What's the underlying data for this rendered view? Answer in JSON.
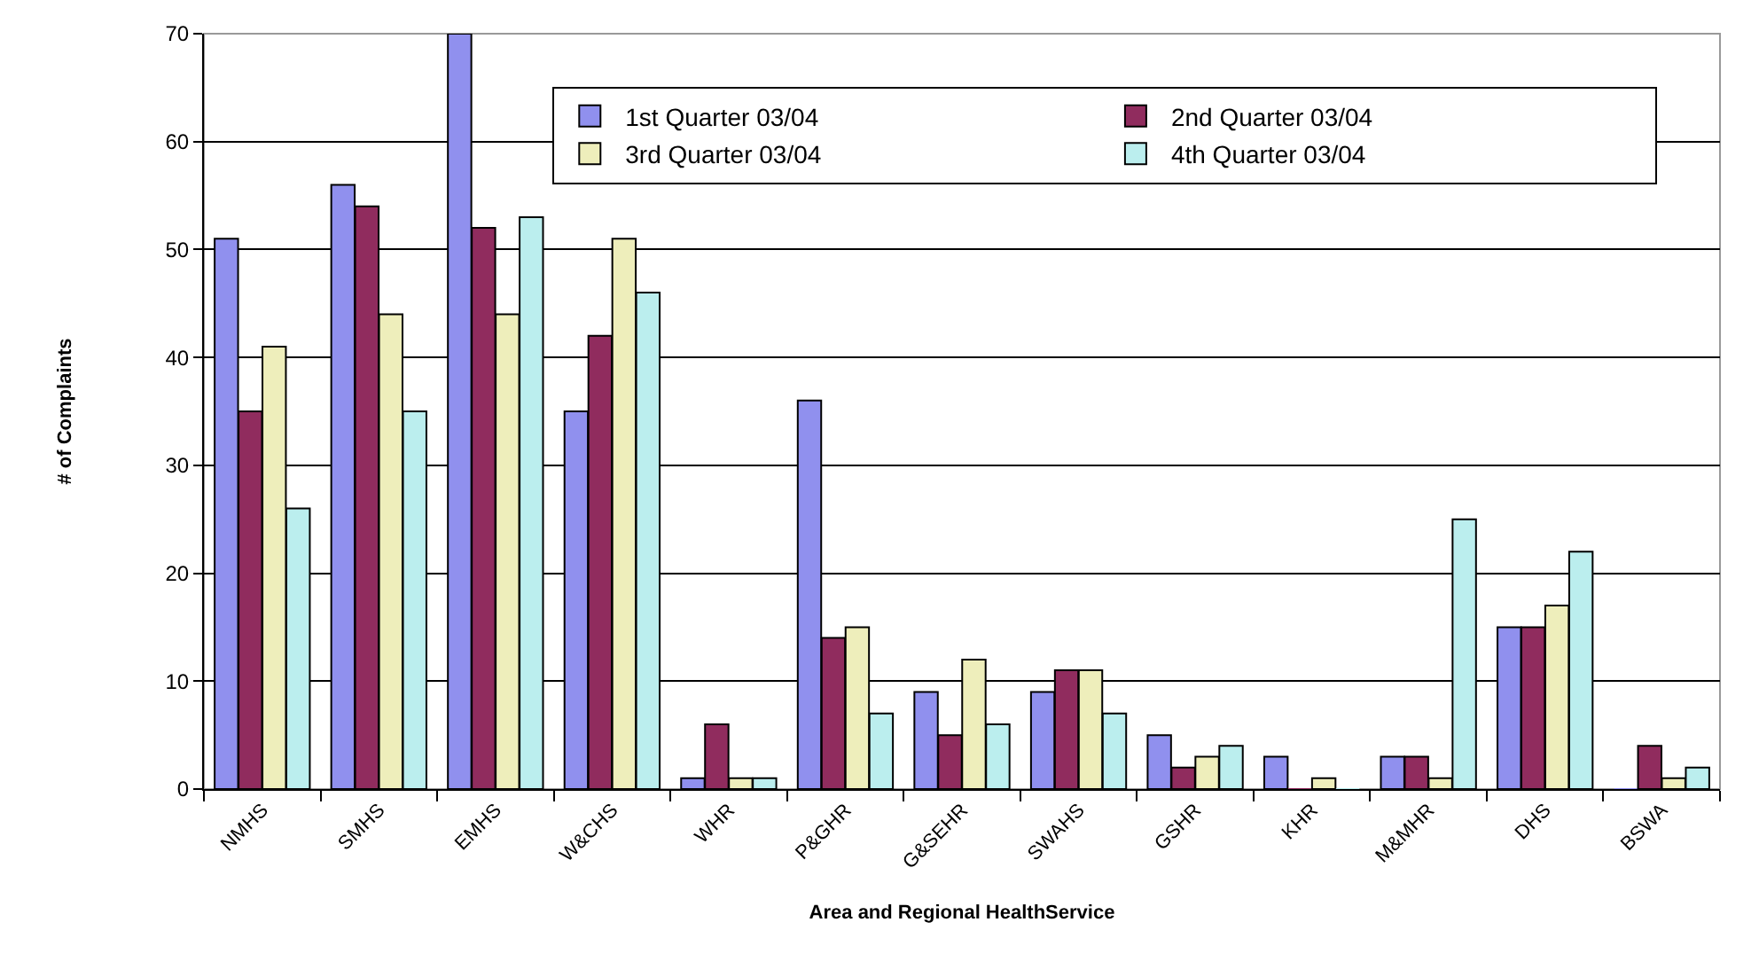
{
  "chart_data": {
    "type": "bar",
    "xlabel": "Area and Regional HealthService",
    "ylabel": "# of Complaints",
    "categories": [
      "NMHS",
      "SMHS",
      "EMHS",
      "W&CHS",
      "WHR",
      "P&GHR",
      "G&SEHR",
      "SWAHS",
      "GSHR",
      "KHR",
      "M&MHR",
      "DHS",
      "BSWA"
    ],
    "series": [
      {
        "name": "1st Quarter 03/04",
        "color": "#9090ee",
        "values": [
          51,
          56,
          70,
          35,
          1,
          36,
          9,
          9,
          5,
          3,
          3,
          15,
          0
        ]
      },
      {
        "name": "2nd Quarter 03/04",
        "color": "#902c5e",
        "values": [
          35,
          54,
          52,
          42,
          6,
          14,
          5,
          11,
          2,
          0,
          3,
          15,
          4
        ]
      },
      {
        "name": "3rd Quarter 03/04",
        "color": "#eeeebb",
        "values": [
          41,
          44,
          44,
          51,
          1,
          15,
          12,
          11,
          3,
          1,
          1,
          17,
          1
        ]
      },
      {
        "name": "4th Quarter 03/04",
        "color": "#bbeeee",
        "values": [
          26,
          35,
          53,
          46,
          1,
          7,
          6,
          7,
          4,
          0,
          25,
          22,
          2
        ]
      }
    ],
    "ylim": [
      0,
      70
    ],
    "yticks": [
      0,
      10,
      20,
      30,
      40,
      50,
      60,
      70
    ],
    "grid": "y",
    "legend": "top"
  }
}
